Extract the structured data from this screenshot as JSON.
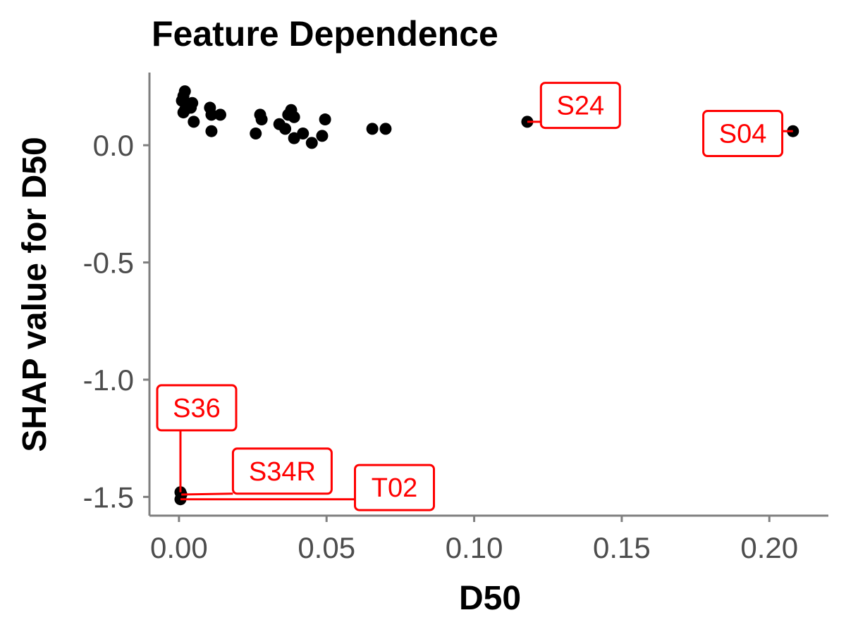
{
  "chart_data": {
    "type": "scatter",
    "title": "Feature Dependence",
    "xlabel": "D50",
    "ylabel": "SHAP value for D50",
    "xlim": [
      -0.01,
      0.22
    ],
    "ylim": [
      -1.58,
      0.31
    ],
    "xticks": [
      0.0,
      0.05,
      0.1,
      0.15,
      0.2
    ],
    "xtick_labels": [
      "0.00",
      "0.05",
      "0.10",
      "0.15",
      "0.20"
    ],
    "yticks": [
      0.0,
      -0.5,
      -1.0,
      -1.5
    ],
    "ytick_labels": [
      "0.0",
      "-0.5",
      "-1.0",
      "-1.5"
    ],
    "grid": false,
    "point_color": "#000000",
    "label_color": "#ff0000",
    "points": [
      {
        "x": 0.0015,
        "y": 0.21
      },
      {
        "x": 0.002,
        "y": 0.23
      },
      {
        "x": 0.001,
        "y": 0.19
      },
      {
        "x": 0.003,
        "y": 0.17
      },
      {
        "x": 0.0045,
        "y": 0.18
      },
      {
        "x": 0.002,
        "y": 0.15
      },
      {
        "x": 0.004,
        "y": 0.16
      },
      {
        "x": 0.0015,
        "y": 0.14
      },
      {
        "x": 0.005,
        "y": 0.1
      },
      {
        "x": 0.0105,
        "y": 0.16
      },
      {
        "x": 0.011,
        "y": 0.13
      },
      {
        "x": 0.014,
        "y": 0.13
      },
      {
        "x": 0.011,
        "y": 0.06
      },
      {
        "x": 0.026,
        "y": 0.05
      },
      {
        "x": 0.0275,
        "y": 0.13
      },
      {
        "x": 0.028,
        "y": 0.11
      },
      {
        "x": 0.034,
        "y": 0.09
      },
      {
        "x": 0.037,
        "y": 0.13
      },
      {
        "x": 0.038,
        "y": 0.15
      },
      {
        "x": 0.039,
        "y": 0.12
      },
      {
        "x": 0.036,
        "y": 0.07
      },
      {
        "x": 0.039,
        "y": 0.03
      },
      {
        "x": 0.042,
        "y": 0.05
      },
      {
        "x": 0.045,
        "y": 0.01
      },
      {
        "x": 0.0485,
        "y": 0.04
      },
      {
        "x": 0.0495,
        "y": 0.11
      },
      {
        "x": 0.0655,
        "y": 0.07
      },
      {
        "x": 0.07,
        "y": 0.07
      },
      {
        "x": 0.118,
        "y": 0.1
      },
      {
        "x": 0.208,
        "y": 0.06
      },
      {
        "x": 0.0005,
        "y": -1.48
      },
      {
        "x": 0.0008,
        "y": -1.49
      },
      {
        "x": 0.0005,
        "y": -1.51
      }
    ],
    "annotations": [
      {
        "label": "S24",
        "x": 0.118,
        "y": 0.1,
        "lx": 0.136,
        "ly": 0.17
      },
      {
        "label": "S04",
        "x": 0.208,
        "y": 0.06,
        "lx": 0.191,
        "ly": 0.05
      },
      {
        "label": "S36",
        "x": 0.0005,
        "y": -1.48,
        "lx": 0.006,
        "ly": -1.12
      },
      {
        "label": "S34R",
        "x": 0.0008,
        "y": -1.49,
        "lx": 0.035,
        "ly": -1.39
      },
      {
        "label": "T02",
        "x": 0.0005,
        "y": -1.51,
        "lx": 0.073,
        "ly": -1.46
      }
    ]
  }
}
